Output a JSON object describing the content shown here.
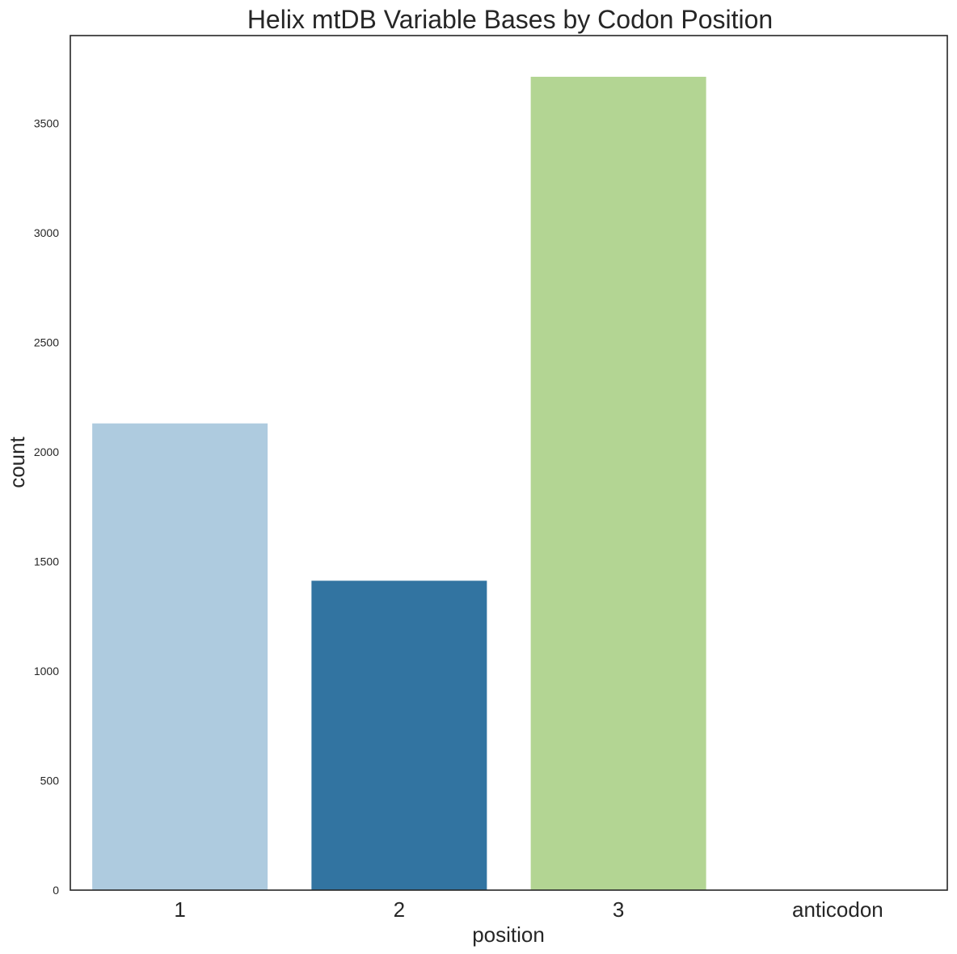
{
  "chart_data": {
    "type": "bar",
    "title": "Helix mtDB Variable Bases by Codon Position",
    "xlabel": "position",
    "ylabel": "count",
    "categories": [
      "1",
      "2",
      "3",
      "anticodon"
    ],
    "values": [
      2130,
      1412,
      3712,
      0
    ],
    "colors": [
      "#aecbdf",
      "#3274a1",
      "#b3d593",
      "#33a02c"
    ],
    "ylim": [
      0,
      3900
    ],
    "yticks": [
      0,
      500,
      1000,
      1500,
      2000,
      2500,
      3000,
      3500
    ],
    "ytick_labels": [
      "0",
      "500",
      "1000",
      "1500",
      "2000",
      "2500",
      "3000",
      "3500"
    ],
    "grid": false,
    "frame_color": "#262626"
  }
}
